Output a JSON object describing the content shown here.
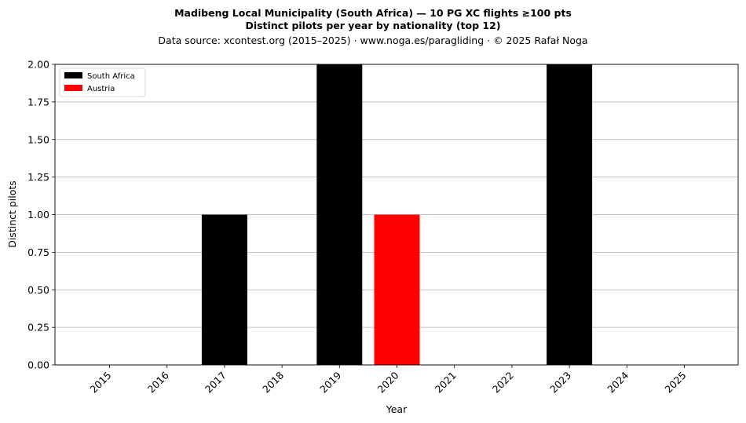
{
  "chart_data": {
    "type": "bar",
    "title_lines": [
      "Madibeng Local Municipality (South Africa)  —  10 PG XC flights ≥100 pts",
      "Distinct pilots per year by nationality (top 12)"
    ],
    "subtitle": "Data source: xcontest.org (2015–2025)  ·  www.noga.es/paragliding  ·  © 2025 Rafał Noga",
    "xlabel": "Year",
    "ylabel": "Distinct pilots",
    "categories": [
      "2015",
      "2016",
      "2017",
      "2018",
      "2019",
      "2020",
      "2021",
      "2022",
      "2023",
      "2024",
      "2025"
    ],
    "series": [
      {
        "name": "South Africa",
        "color": "#000000",
        "values": [
          0,
          0,
          1,
          0,
          2,
          0,
          0,
          0,
          2,
          0,
          0
        ]
      },
      {
        "name": "Austria",
        "color": "#ff0000",
        "values": [
          0,
          0,
          0,
          0,
          0,
          1,
          0,
          0,
          0,
          0,
          0
        ]
      }
    ],
    "ylim": [
      0,
      2
    ],
    "yticks": [
      "0.00",
      "0.25",
      "0.50",
      "0.75",
      "1.00",
      "1.25",
      "1.50",
      "1.75",
      "2.00"
    ],
    "grid": "horizontal",
    "legend_position": "top-left",
    "stacked": true
  }
}
